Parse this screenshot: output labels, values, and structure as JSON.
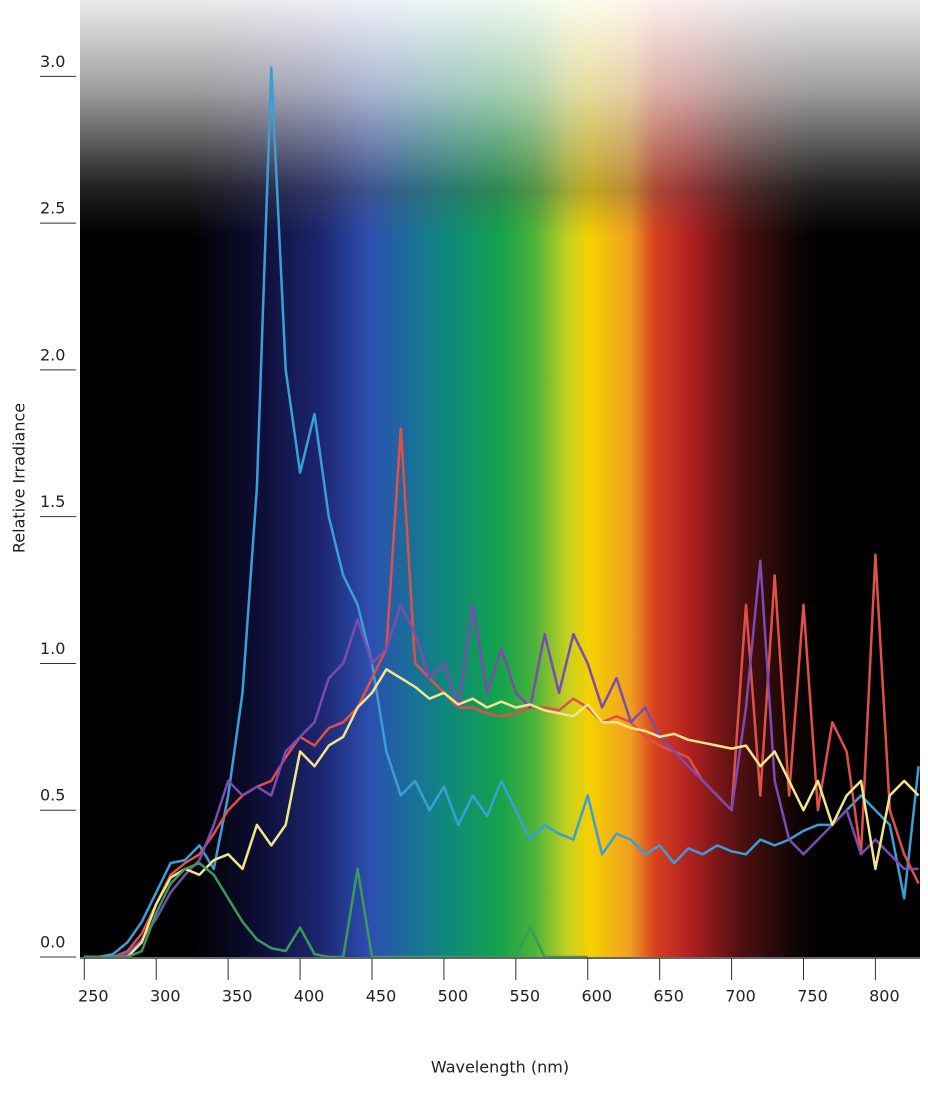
{
  "chart_data": {
    "type": "line",
    "x_label": "Wavelength (nm)",
    "y_label": "Relative Irradiance",
    "x": [
      250,
      260,
      270,
      280,
      290,
      300,
      310,
      320,
      330,
      340,
      350,
      360,
      370,
      380,
      390,
      400,
      410,
      420,
      430,
      440,
      450,
      460,
      470,
      480,
      490,
      500,
      510,
      520,
      530,
      540,
      550,
      560,
      570,
      580,
      590,
      600,
      610,
      620,
      630,
      640,
      650,
      660,
      670,
      680,
      690,
      700,
      710,
      720,
      730,
      740,
      750,
      760,
      770,
      780,
      790,
      800,
      810,
      820,
      830
    ],
    "series": [
      {
        "color": "#3a9fd8",
        "values": [
          0,
          0,
          0.01,
          0.05,
          0.12,
          0.22,
          0.32,
          0.33,
          0.38,
          0.3,
          0.55,
          0.9,
          1.6,
          3.03,
          2.0,
          1.65,
          1.85,
          1.5,
          1.3,
          1.2,
          1.0,
          0.7,
          0.55,
          0.6,
          0.5,
          0.58,
          0.45,
          0.55,
          0.48,
          0.6,
          0.5,
          0.4,
          0.45,
          0.42,
          0.4,
          0.55,
          0.35,
          0.42,
          0.4,
          0.35,
          0.38,
          0.32,
          0.37,
          0.35,
          0.38,
          0.36,
          0.35,
          0.4,
          0.38,
          0.4,
          0.43,
          0.45,
          0.45,
          0.5,
          0.55,
          0.5,
          0.45,
          0.2,
          0.65
        ]
      },
      {
        "color": "#e0504a",
        "values": [
          0,
          0,
          0,
          0.02,
          0.08,
          0.18,
          0.28,
          0.32,
          0.35,
          0.42,
          0.5,
          0.55,
          0.58,
          0.6,
          0.68,
          0.75,
          0.72,
          0.78,
          0.8,
          0.85,
          0.95,
          1.05,
          1.8,
          1.0,
          0.95,
          0.9,
          0.85,
          0.85,
          0.83,
          0.82,
          0.83,
          0.85,
          0.85,
          0.84,
          0.88,
          0.85,
          0.8,
          0.82,
          0.8,
          0.75,
          0.72,
          0.7,
          0.68,
          0.6,
          0.55,
          0.5,
          1.2,
          0.55,
          1.3,
          0.55,
          1.2,
          0.5,
          0.8,
          0.7,
          0.35,
          1.37,
          0.5,
          0.35,
          0.25
        ]
      },
      {
        "color": "#7b4bb0",
        "values": [
          0,
          0,
          0,
          0.01,
          0.06,
          0.13,
          0.22,
          0.28,
          0.33,
          0.45,
          0.6,
          0.55,
          0.58,
          0.55,
          0.7,
          0.75,
          0.8,
          0.95,
          1.0,
          1.15,
          1.0,
          1.05,
          1.2,
          1.1,
          0.95,
          1.0,
          0.85,
          1.2,
          0.9,
          1.05,
          0.9,
          0.85,
          1.1,
          0.9,
          1.1,
          1.0,
          0.85,
          0.95,
          0.8,
          0.85,
          0.75,
          0.7,
          0.65,
          0.6,
          0.55,
          0.5,
          0.85,
          1.35,
          0.6,
          0.4,
          0.35,
          0.4,
          0.45,
          0.5,
          0.35,
          0.4,
          0.35,
          0.3,
          0.3
        ]
      },
      {
        "color": "#f2e58a",
        "values": [
          0,
          0,
          0,
          0,
          0.05,
          0.18,
          0.27,
          0.3,
          0.28,
          0.33,
          0.35,
          0.3,
          0.45,
          0.38,
          0.45,
          0.7,
          0.65,
          0.72,
          0.75,
          0.85,
          0.9,
          0.98,
          0.95,
          0.92,
          0.88,
          0.9,
          0.86,
          0.88,
          0.85,
          0.87,
          0.85,
          0.86,
          0.84,
          0.83,
          0.82,
          0.86,
          0.8,
          0.8,
          0.78,
          0.77,
          0.75,
          0.76,
          0.74,
          0.73,
          0.72,
          0.71,
          0.72,
          0.65,
          0.7,
          0.6,
          0.5,
          0.6,
          0.45,
          0.55,
          0.6,
          0.3,
          0.55,
          0.6,
          0.55
        ]
      },
      {
        "color": "#3a9a5a",
        "values": [
          0,
          0,
          0,
          0,
          0.02,
          0.15,
          0.25,
          0.3,
          0.32,
          0.28,
          0.2,
          0.12,
          0.06,
          0.03,
          0.02,
          0.1,
          0.01,
          0,
          0,
          0.3,
          0,
          0,
          0,
          0,
          0,
          0,
          0,
          0,
          0,
          0,
          0,
          0.1,
          0,
          0,
          0,
          0,
          null,
          null,
          null,
          null,
          null,
          null,
          null,
          null,
          null,
          null,
          null,
          null,
          null,
          null,
          null,
          null,
          null,
          null,
          null,
          null,
          null,
          null,
          null
        ]
      }
    ],
    "xlim": [
      247,
      831
    ],
    "xticks": [
      250,
      300,
      350,
      400,
      450,
      500,
      550,
      600,
      650,
      700,
      750,
      800
    ],
    "ylim": [
      0,
      3.26
    ],
    "yticks": [
      {
        "value": 0,
        "label": "0.0"
      },
      0.5,
      {
        "value": 1,
        "label": "1.0"
      },
      1.5,
      {
        "value": 2,
        "label": "2.0"
      },
      2.5,
      {
        "value": 3,
        "label": "3.0"
      }
    ]
  }
}
